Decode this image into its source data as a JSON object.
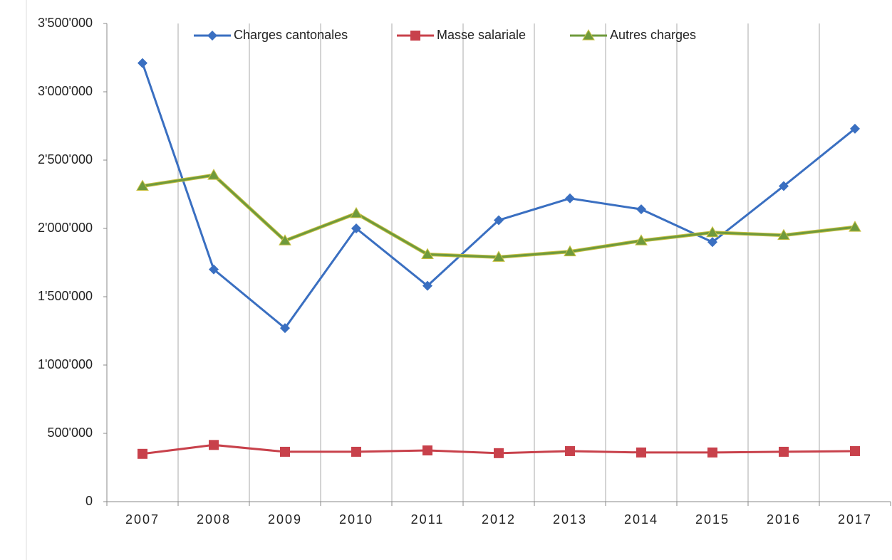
{
  "chart_data": {
    "type": "line",
    "categories": [
      "2007",
      "2008",
      "2009",
      "2010",
      "2011",
      "2012",
      "2013",
      "2014",
      "2015",
      "2016",
      "2017"
    ],
    "series": [
      {
        "name": "Charges cantonales",
        "color": "#3a6fc1",
        "marker": "diamond",
        "values": [
          3210000,
          1700000,
          1270000,
          2000000,
          1580000,
          2060000,
          2220000,
          2140000,
          1900000,
          2310000,
          2730000
        ]
      },
      {
        "name": "Masse salariale",
        "color": "#c8414b",
        "marker": "square",
        "values": [
          350000,
          415000,
          365000,
          365000,
          375000,
          355000,
          370000,
          360000,
          360000,
          365000,
          370000
        ]
      },
      {
        "name": "Autres charges",
        "color": "#6f9a3c",
        "marker": "triangle",
        "values": [
          2310000,
          2390000,
          1910000,
          2110000,
          1810000,
          1790000,
          1830000,
          1910000,
          1970000,
          1950000,
          2010000
        ]
      }
    ],
    "ylim": [
      0,
      3500000
    ],
    "yticks": [
      0,
      {
        "value": 500000,
        "label": "500'000"
      },
      {
        "value": 1000000,
        "label": "1'000'000"
      },
      {
        "value": 1500000,
        "label": "1'500'000"
      },
      {
        "value": 2000000,
        "label": "2'000'000"
      },
      {
        "value": 2500000,
        "label": "2'500'000"
      },
      {
        "value": 3000000,
        "label": "3'000'000"
      },
      {
        "value": 3500000,
        "label": "3'500'000"
      }
    ],
    "legend": "top"
  }
}
